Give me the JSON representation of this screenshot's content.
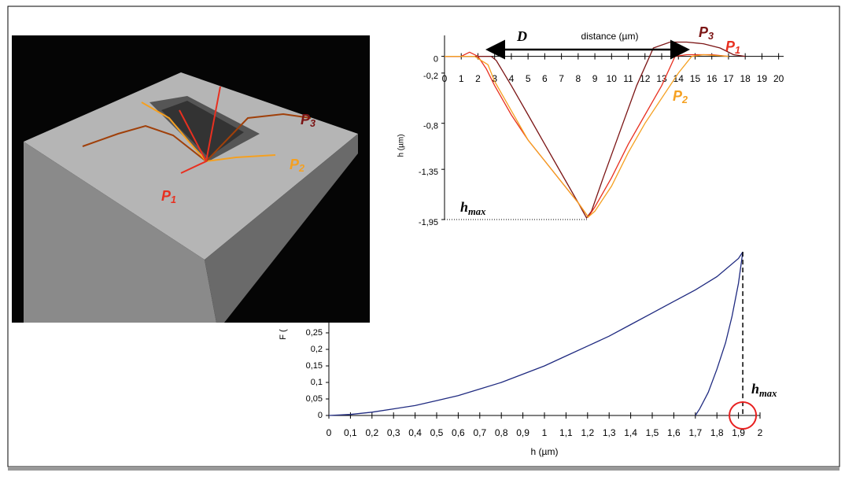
{
  "afm_image": {
    "labels": [
      "P3",
      "P2",
      "P1"
    ]
  },
  "chart_data": [
    {
      "type": "line",
      "xlabel": "distance (µm)",
      "ylabel": "h (µm)",
      "xlim": [
        0,
        20.3
      ],
      "xticks": [
        0,
        1,
        2,
        3,
        4,
        5,
        6,
        7,
        8,
        9,
        10,
        11,
        12,
        13,
        14,
        15,
        16,
        17,
        18,
        19,
        20
      ],
      "ylim": [
        -1.95,
        0.25
      ],
      "yticks": [
        0,
        {
          "value": -0.2,
          "label": "-0,2"
        },
        {
          "value": -0.8,
          "label": "-0,8"
        },
        {
          "value": -1.35,
          "label": "-1,35"
        },
        {
          "value": -1.95,
          "label": "-1,95"
        }
      ],
      "annotations": [
        "D",
        "hmax"
      ],
      "series": [
        {
          "name": "P3",
          "color": "#7b1414",
          "x": [
            0,
            1,
            2,
            2.8,
            3.1,
            4,
            5,
            6,
            7,
            8,
            8.5,
            8.8,
            9.5,
            10.5,
            11.5,
            12.5,
            13.5,
            14.5,
            15.5,
            16.5,
            17.3,
            18
          ],
          "values": [
            0,
            0,
            0,
            0,
            -0.05,
            -0.35,
            -0.7,
            -1.05,
            -1.4,
            -1.75,
            -1.93,
            -1.85,
            -1.45,
            -0.9,
            -0.35,
            0.1,
            0.17,
            0.17,
            0.15,
            0.1,
            0.02,
            0
          ]
        },
        {
          "name": "P1",
          "color": "#e83020",
          "x": [
            0,
            1,
            1.5,
            2,
            2.5,
            3,
            4,
            5,
            6,
            7,
            8,
            8.6,
            9,
            10,
            11,
            12,
            13,
            13.8,
            14.5,
            16,
            17
          ],
          "values": [
            0,
            0,
            0.05,
            0,
            -0.15,
            -0.35,
            -0.7,
            -1.0,
            -1.25,
            -1.5,
            -1.75,
            -1.92,
            -1.8,
            -1.45,
            -1.05,
            -0.7,
            -0.35,
            0,
            0.02,
            0.02,
            0
          ]
        },
        {
          "name": "P2",
          "color": "#f5a020",
          "x": [
            0,
            1,
            1.8,
            2.2,
            2.6,
            3,
            4,
            5,
            6,
            7,
            8,
            8.6,
            9,
            10,
            11,
            12,
            13,
            14,
            14.8,
            15.5,
            17
          ],
          "values": [
            0,
            0,
            0,
            -0.05,
            -0.1,
            -0.3,
            -0.65,
            -1.0,
            -1.25,
            -1.5,
            -1.75,
            -1.92,
            -1.85,
            -1.55,
            -1.15,
            -0.8,
            -0.5,
            -0.2,
            0,
            0.02,
            0
          ]
        }
      ]
    },
    {
      "type": "line",
      "xlabel": "h (µm)",
      "ylabel": "F (",
      "xlim": [
        0,
        2
      ],
      "xticks": [
        0,
        {
          "value": 0.1,
          "label": "0,1"
        },
        {
          "value": 0.2,
          "label": "0,2"
        },
        {
          "value": 0.3,
          "label": "0,3"
        },
        {
          "value": 0.4,
          "label": "0,4"
        },
        {
          "value": 0.5,
          "label": "0,5"
        },
        {
          "value": 0.6,
          "label": "0,6"
        },
        {
          "value": 0.7,
          "label": "0,7"
        },
        {
          "value": 0.8,
          "label": "0,8"
        },
        {
          "value": 0.9,
          "label": "0,9"
        },
        1,
        {
          "value": 1.1,
          "label": "1,1"
        },
        {
          "value": 1.2,
          "label": "1,2"
        },
        {
          "value": 1.3,
          "label": "1,3"
        },
        {
          "value": 1.4,
          "label": "1,4"
        },
        {
          "value": 1.5,
          "label": "1,5"
        },
        {
          "value": 1.6,
          "label": "1,6"
        },
        {
          "value": 1.7,
          "label": "1,7"
        },
        {
          "value": 1.8,
          "label": "1,8"
        },
        {
          "value": 1.9,
          "label": "1,9"
        },
        2
      ],
      "ylim": [
        0,
        0.5
      ],
      "yticks": [
        0,
        {
          "value": 0.05,
          "label": "0,05"
        },
        {
          "value": 0.1,
          "label": "0,1"
        },
        {
          "value": 0.15,
          "label": "0,15"
        },
        {
          "value": 0.2,
          "label": "0,2"
        },
        {
          "value": 0.25,
          "label": "0,25"
        }
      ],
      "annotations": [
        "hmax"
      ],
      "series": [
        {
          "color": "#1f2a80",
          "x": [
            0,
            0.1,
            0.2,
            0.3,
            0.4,
            0.5,
            0.6,
            0.7,
            0.8,
            0.9,
            1,
            1.1,
            1.2,
            1.3,
            1.4,
            1.5,
            1.6,
            1.7,
            1.8,
            1.9,
            1.92
          ],
          "values": [
            0,
            0.003,
            0.01,
            0.02,
            0.03,
            0.045,
            0.06,
            0.08,
            0.1,
            0.125,
            0.15,
            0.18,
            0.21,
            0.24,
            0.275,
            0.31,
            0.345,
            0.38,
            0.42,
            0.475,
            0.495
          ]
        },
        {
          "color": "#1f2a80",
          "x": [
            1.92,
            1.9,
            1.87,
            1.84,
            1.8,
            1.76,
            1.72,
            1.7
          ],
          "values": [
            0.495,
            0.4,
            0.3,
            0.22,
            0.14,
            0.07,
            0.02,
            0
          ]
        }
      ]
    }
  ]
}
